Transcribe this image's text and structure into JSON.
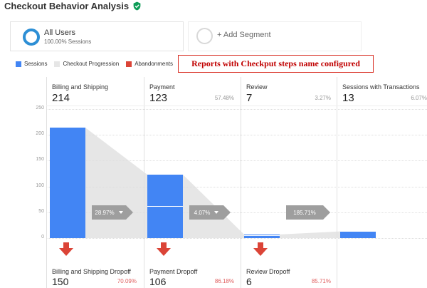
{
  "header": {
    "title": "Checkout Behavior Analysis",
    "verified_icon": "check-shield-icon"
  },
  "segments": {
    "all_users": {
      "name": "All Users",
      "sub": "100.00% Sessions"
    },
    "add_segment": {
      "label": "+ Add Segment"
    }
  },
  "legend": [
    {
      "label": "Sessions",
      "color": "#4285f4"
    },
    {
      "label": "Checkout Progression",
      "color": "#e6e6e6"
    },
    {
      "label": "Abandonments",
      "color": "#db4437"
    }
  ],
  "callout": "Reports with Checkput steps name configured",
  "chart_data": {
    "type": "bar",
    "title": "",
    "categories": [
      "Billing and Shipping",
      "Payment",
      "Review",
      "Sessions with Transactions"
    ],
    "values": [
      214,
      123,
      7,
      13
    ],
    "percentages": [
      "",
      "57.48%",
      "3.27%",
      "6.07%"
    ],
    "progression_rates": [
      "28.97%",
      "4.07%",
      "185.71%"
    ],
    "yticks": [
      "250",
      "200",
      "150",
      "100",
      "50",
      "0"
    ],
    "ylim": [
      0,
      250
    ],
    "dropoffs": [
      {
        "label": "Billing and Shipping Dropoff",
        "value": "150",
        "pct": "70.09%"
      },
      {
        "label": "Payment Dropoff",
        "value": "106",
        "pct": "86.18%"
      },
      {
        "label": "Review Dropoff",
        "value": "6",
        "pct": "85.71%"
      }
    ]
  }
}
